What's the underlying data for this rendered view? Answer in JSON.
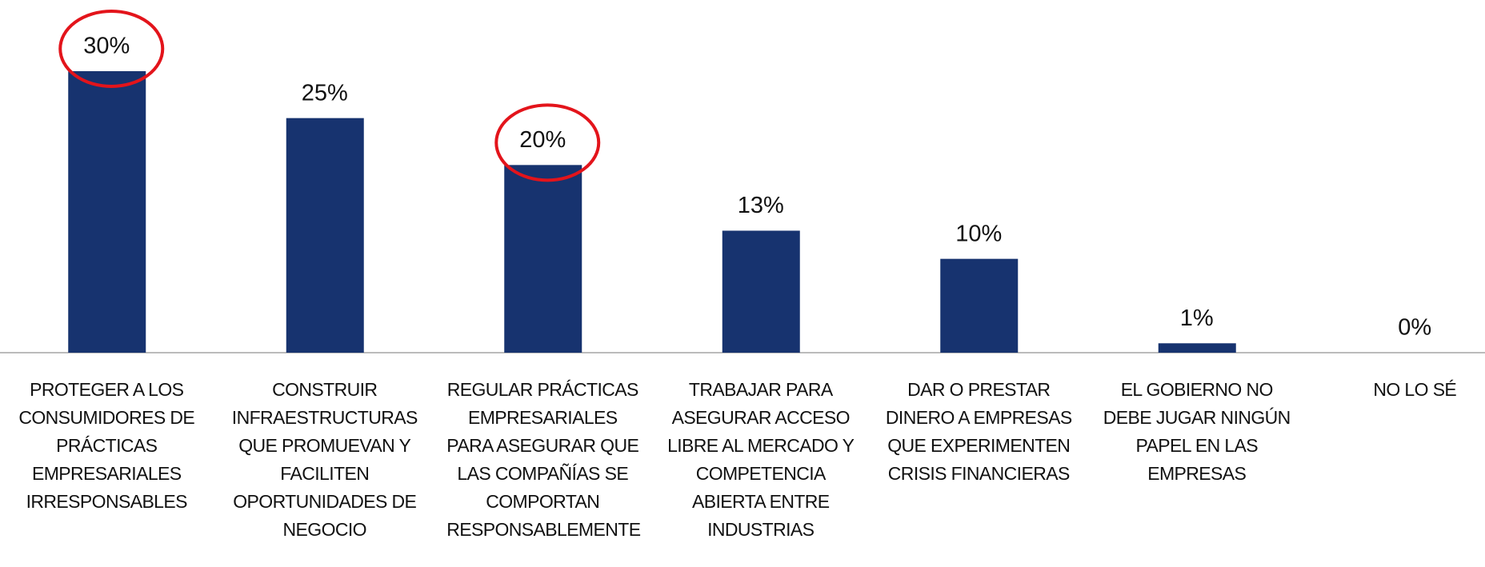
{
  "chart_data": {
    "type": "bar",
    "categories": [
      "PROTEGER A LOS CONSUMIDORES DE PRÁCTICAS EMPRESARIALES IRRESPONSABLES",
      "CONSTRUIR INFRAESTRUCTURAS QUE PROMUEVAN Y FACILITEN OPORTUNIDADES DE NEGOCIO",
      "REGULAR PRÁCTICAS EMPRESARIALES PARA ASEGURAR QUE LAS COMPAÑÍAS SE COMPORTAN RESPONSABLEMENTE",
      "TRABAJAR PARA ASEGURAR ACCESO LIBRE AL MERCADO Y COMPETENCIA ABIERTA ENTRE INDUSTRIAS",
      "DAR O PRESTAR DINERO A EMPRESAS QUE EXPERIMENTEN CRISIS FINANCIERAS",
      "EL GOBIERNO NO DEBE JUGAR NINGÚN PAPEL EN LAS EMPRESAS",
      "NO LO SÉ"
    ],
    "values": [
      30,
      25,
      20,
      13,
      10,
      1,
      0
    ],
    "value_labels": [
      "30%",
      "25%",
      "20%",
      "13%",
      "10%",
      "1%",
      "0%"
    ],
    "color": "#17336f",
    "highlighted": [
      true,
      false,
      true,
      false,
      false,
      false,
      false
    ],
    "highlight_color": "#e3141b"
  }
}
